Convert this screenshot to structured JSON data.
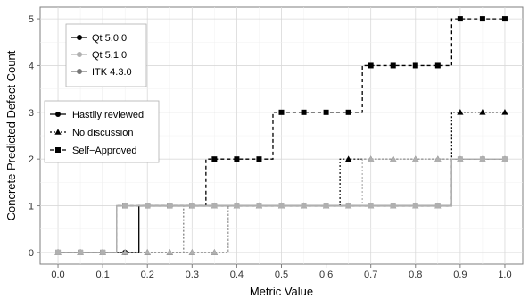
{
  "chart_data": {
    "type": "line",
    "style": "step",
    "xlabel": "Metric Value",
    "ylabel": "Concrete Predicted Defect Count",
    "xlim": [
      -0.04,
      1.04
    ],
    "ylim": [
      -0.25,
      5.25
    ],
    "x_ticks": [
      "0.0",
      "0.1",
      "0.2",
      "0.3",
      "0.4",
      "0.5",
      "0.6",
      "0.7",
      "0.8",
      "0.9",
      "1.0"
    ],
    "y_ticks": [
      "0",
      "1",
      "2",
      "3",
      "4",
      "5"
    ],
    "grid": true,
    "legend_systems": {
      "placement": "top-left",
      "entries": [
        {
          "name": "Qt 5.0.0",
          "color": "#000000"
        },
        {
          "name": "Qt 5.1.0",
          "color": "#b0b0b0"
        },
        {
          "name": "ITK 4.3.0",
          "color": "#777777"
        }
      ]
    },
    "legend_types": {
      "placement": "left",
      "entries": [
        {
          "name": "Hastily reviewed",
          "marker": "circle",
          "dash": "solid"
        },
        {
          "name": "No discussion",
          "marker": "triangle",
          "dash": "dotted"
        },
        {
          "name": "Self−Approved",
          "marker": "square",
          "dash": "dashed"
        }
      ]
    },
    "series": [
      {
        "system": "ITK 4.3.0",
        "type": "Hastily reviewed",
        "color": "#777777",
        "x": [
          0,
          0.05,
          0.1,
          0.15,
          0.2,
          0.25,
          0.3,
          0.35,
          0.4,
          0.45,
          0.5,
          0.55,
          0.6,
          0.65,
          0.7,
          0.75,
          0.8,
          0.85,
          0.9,
          0.95,
          1.0
        ],
        "y": [
          0,
          0,
          0,
          1,
          1,
          1,
          1,
          1,
          1,
          1,
          1,
          1,
          1,
          1,
          1,
          1,
          1,
          1,
          2,
          2,
          2
        ]
      },
      {
        "system": "ITK 4.3.0",
        "type": "No discussion",
        "color": "#777777",
        "x": [
          0,
          0.05,
          0.1,
          0.15,
          0.2,
          0.25,
          0.3,
          0.35,
          0.4,
          0.45,
          0.5,
          0.55,
          0.6,
          0.65,
          0.7,
          0.75,
          0.8,
          0.85,
          0.9,
          0.95,
          1.0
        ],
        "y": [
          0,
          0,
          0,
          0,
          0,
          0,
          1,
          1,
          1,
          1,
          1,
          1,
          1,
          1,
          1,
          1,
          1,
          1,
          2,
          2,
          2
        ]
      },
      {
        "system": "Qt 5.0.0",
        "type": "Hastily reviewed",
        "color": "#000000",
        "x": [
          0,
          0.05,
          0.1,
          0.15,
          0.2,
          0.25,
          0.3,
          0.35,
          0.4,
          0.45,
          0.5,
          0.55,
          0.6,
          0.65,
          0.7,
          0.75,
          0.8,
          0.85,
          0.9,
          0.95,
          1.0
        ],
        "y": [
          0,
          0,
          0,
          0,
          1,
          1,
          1,
          1,
          1,
          1,
          1,
          1,
          1,
          1,
          1,
          1,
          1,
          1,
          2,
          2,
          2
        ]
      },
      {
        "system": "Qt 5.0.0",
        "type": "No discussion",
        "color": "#000000",
        "x": [
          0,
          0.05,
          0.1,
          0.15,
          0.2,
          0.25,
          0.3,
          0.35,
          0.4,
          0.45,
          0.5,
          0.55,
          0.6,
          0.65,
          0.7,
          0.75,
          0.8,
          0.85,
          0.9,
          0.95,
          1.0
        ],
        "y": [
          0,
          0,
          0,
          0,
          0,
          0,
          0,
          0,
          1,
          1,
          1,
          1,
          1,
          2,
          2,
          2,
          2,
          2,
          3,
          3,
          3
        ]
      },
      {
        "system": "Qt 5.0.0",
        "type": "Self−Approved",
        "color": "#000000",
        "x": [
          0,
          0.05,
          0.1,
          0.15,
          0.2,
          0.25,
          0.3,
          0.35,
          0.4,
          0.45,
          0.5,
          0.55,
          0.6,
          0.65,
          0.7,
          0.75,
          0.8,
          0.85,
          0.9,
          0.95,
          1.0
        ],
        "y": [
          0,
          0,
          0,
          1,
          1,
          1,
          1,
          2,
          2,
          2,
          3,
          3,
          3,
          3,
          4,
          4,
          4,
          4,
          5,
          5,
          5
        ]
      },
      {
        "system": "Qt 5.1.0",
        "type": "Hastily reviewed",
        "color": "#b0b0b0",
        "x": [
          0,
          0.05,
          0.1,
          0.15,
          0.2,
          0.25,
          0.3,
          0.35,
          0.4,
          0.45,
          0.5,
          0.55,
          0.6,
          0.65,
          0.7,
          0.75,
          0.8,
          0.85,
          0.9,
          0.95,
          1.0
        ],
        "y": [
          0,
          0,
          0,
          1,
          1,
          1,
          1,
          1,
          1,
          1,
          1,
          1,
          1,
          1,
          1,
          1,
          1,
          1,
          2,
          2,
          2
        ]
      },
      {
        "system": "Qt 5.1.0",
        "type": "No discussion",
        "color": "#b0b0b0",
        "x": [
          0,
          0.05,
          0.1,
          0.15,
          0.2,
          0.25,
          0.3,
          0.35,
          0.4,
          0.45,
          0.5,
          0.55,
          0.6,
          0.65,
          0.7,
          0.75,
          0.8,
          0.85,
          0.9,
          0.95,
          1.0
        ],
        "y": [
          0,
          0,
          0,
          0,
          0,
          0,
          0,
          0,
          1,
          1,
          1,
          1,
          1,
          1,
          2,
          2,
          2,
          2,
          2,
          2,
          2
        ]
      },
      {
        "system": "Qt 5.1.0",
        "type": "Self−Approved",
        "color": "#b0b0b0",
        "x": [
          0,
          0.05,
          0.1,
          0.15,
          0.2,
          0.25,
          0.3,
          0.35,
          0.4,
          0.45,
          0.5,
          0.55,
          0.6,
          0.65,
          0.7,
          0.75,
          0.8,
          0.85,
          0.9,
          0.95,
          1.0
        ],
        "y": [
          0,
          0,
          0,
          1,
          1,
          1,
          1,
          1,
          1,
          1,
          1,
          1,
          1,
          1,
          1,
          1,
          1,
          1,
          2,
          2,
          2
        ]
      }
    ]
  }
}
